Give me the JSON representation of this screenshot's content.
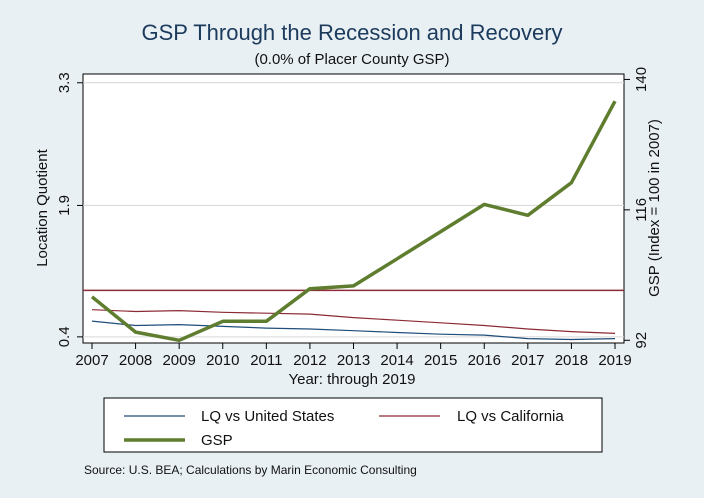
{
  "chart_data": {
    "type": "line",
    "title": "GSP Through the Recession and Recovery",
    "subtitle": "(0.0% of Placer County GSP)",
    "xlabel": "Year: through 2019",
    "ylabel_left": "Location Quotient",
    "ylabel_right": "GSP (Index = 100 in 2007)",
    "x": [
      2007,
      2008,
      2009,
      2010,
      2011,
      2012,
      2013,
      2014,
      2015,
      2016,
      2017,
      2018,
      2019
    ],
    "x_ticks": [
      "2007",
      "2008",
      "2009",
      "2010",
      "2011",
      "2012",
      "2013",
      "2014",
      "2015",
      "2016",
      "2017",
      "2018",
      "2019"
    ],
    "y_left_ticks": [
      "0.4",
      "1.9",
      "3.3"
    ],
    "y_left_tick_values": [
      0.4,
      1.9,
      3.3
    ],
    "y_right_ticks": [
      "92",
      "116",
      "140"
    ],
    "y_right_tick_values": [
      92,
      116,
      140
    ],
    "ylim_left": [
      0.33,
      3.4
    ],
    "ylim_right": [
      91.5,
      141
    ],
    "grid": true,
    "legend_position": "bottom",
    "reference_line": {
      "axis": "left",
      "value": 0.93,
      "color": "#8c2b35"
    },
    "series": [
      {
        "name": "LQ vs United States",
        "axis": "left",
        "color": "#1f4e79",
        "width": 1.2,
        "values": [
          0.58,
          0.53,
          0.54,
          0.52,
          0.5,
          0.49,
          0.47,
          0.45,
          0.43,
          0.42,
          0.38,
          0.37,
          0.38
        ]
      },
      {
        "name": "LQ vs California",
        "axis": "left",
        "color": "#8c2b35",
        "width": 1.2,
        "values": [
          0.71,
          0.69,
          0.7,
          0.68,
          0.67,
          0.66,
          0.62,
          0.59,
          0.56,
          0.53,
          0.49,
          0.46,
          0.44
        ]
      },
      {
        "name": "GSP",
        "axis": "right",
        "color": "#5e7d2e",
        "width": 3.5,
        "values": [
          100.0,
          93.5,
          92.0,
          95.5,
          95.5,
          101.5,
          102.0,
          107.0,
          112.0,
          117.0,
          115.0,
          121.0,
          136.0
        ]
      }
    ]
  },
  "source": "Source: U.S. BEA; Calculations by Marin Economic Consulting"
}
